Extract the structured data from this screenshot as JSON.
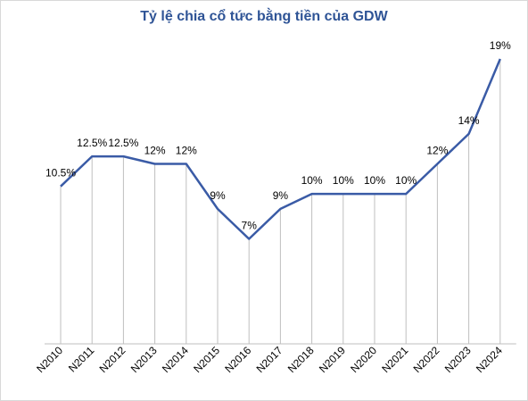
{
  "chart_data": {
    "type": "line",
    "title": "Tỷ lệ chia cổ tức bằng tiền của GDW",
    "categories": [
      "N2010",
      "N2011",
      "N2012",
      "N2013",
      "N2014",
      "N2015",
      "N2016",
      "N2017",
      "N2018",
      "N2019",
      "N2020",
      "N2021",
      "N2022",
      "N2023",
      "N2024"
    ],
    "values": [
      10.5,
      12.5,
      12.5,
      12,
      12,
      9,
      7,
      9,
      10,
      10,
      10,
      10,
      12,
      14,
      19
    ],
    "data_labels": [
      "10.5%",
      "12.5%",
      "12.5%",
      "12%",
      "12%",
      "9%",
      "7%",
      "9%",
      "10%",
      "10%",
      "10%",
      "10%",
      "12%",
      "14%",
      "19%"
    ],
    "xlabel": "",
    "ylabel": "",
    "ylim": [
      0,
      19
    ],
    "grid": "vertical drop lines",
    "legend": "none",
    "colors": {
      "line": "#3a5ba6",
      "droplines": "#bfbfbf",
      "title": "#2f5496"
    }
  }
}
